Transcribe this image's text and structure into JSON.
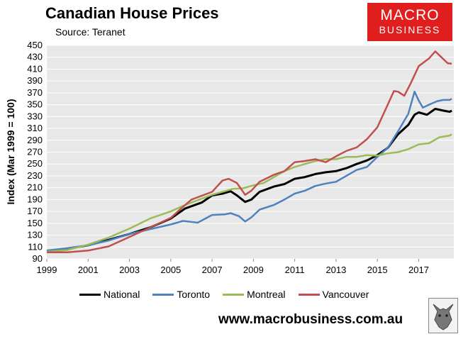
{
  "header": {
    "title": "Canadian House Prices",
    "subtitle": "Source: Teranet"
  },
  "logo": {
    "line1": "MACRO",
    "line2": "BUSINESS",
    "color": "#e01e1e"
  },
  "footer": {
    "website": "www.macrobusiness.com.au"
  },
  "icons": {
    "corner": "wolf-logo-icon"
  },
  "chart_data": {
    "type": "line",
    "title": "Canadian House Prices",
    "ylabel": "Index (Mar 1999 = 100)",
    "xlabel": "",
    "xlim": [
      1999,
      2018.7
    ],
    "ylim": [
      90,
      450
    ],
    "yticks": [
      90,
      110,
      130,
      150,
      170,
      190,
      210,
      230,
      250,
      270,
      290,
      310,
      330,
      350,
      370,
      390,
      410,
      430,
      450
    ],
    "xticks": [
      1999,
      2001,
      2003,
      2005,
      2007,
      2009,
      2011,
      2013,
      2015,
      2017
    ],
    "grid": true,
    "legend_position": "bottom",
    "series": [
      {
        "name": "National",
        "color": "#000000",
        "width": 3,
        "points": [
          [
            1999,
            103
          ],
          [
            2000,
            107
          ],
          [
            2001,
            113
          ],
          [
            2002,
            122
          ],
          [
            2003,
            132
          ],
          [
            2004,
            143
          ],
          [
            2005,
            158
          ],
          [
            2005.7,
            175
          ],
          [
            2006.5,
            185
          ],
          [
            2007,
            197
          ],
          [
            2007.5,
            200
          ],
          [
            2007.9,
            204
          ],
          [
            2008.2,
            197
          ],
          [
            2008.6,
            186
          ],
          [
            2008.9,
            190
          ],
          [
            2009.3,
            203
          ],
          [
            2010,
            212
          ],
          [
            2010.5,
            216
          ],
          [
            2011,
            225
          ],
          [
            2011.5,
            228
          ],
          [
            2012,
            233
          ],
          [
            2012.5,
            236
          ],
          [
            2013,
            238
          ],
          [
            2013.5,
            243
          ],
          [
            2014,
            250
          ],
          [
            2014.5,
            256
          ],
          [
            2015,
            265
          ],
          [
            2015.5,
            277
          ],
          [
            2016,
            300
          ],
          [
            2016.5,
            316
          ],
          [
            2016.8,
            333
          ],
          [
            2017,
            337
          ],
          [
            2017.4,
            333
          ],
          [
            2017.8,
            343
          ],
          [
            2018.2,
            340
          ],
          [
            2018.5,
            338
          ],
          [
            2018.6,
            340
          ]
        ]
      },
      {
        "name": "Toronto",
        "color": "#4f81bd",
        "width": 2.5,
        "points": [
          [
            1999,
            104
          ],
          [
            2000,
            108
          ],
          [
            2001,
            113
          ],
          [
            2002,
            121
          ],
          [
            2003,
            132
          ],
          [
            2004,
            140
          ],
          [
            2005,
            148
          ],
          [
            2005.6,
            154
          ],
          [
            2006.3,
            151
          ],
          [
            2007,
            164
          ],
          [
            2007.6,
            165
          ],
          [
            2007.9,
            167
          ],
          [
            2008.3,
            162
          ],
          [
            2008.6,
            153
          ],
          [
            2008.9,
            160
          ],
          [
            2009.3,
            173
          ],
          [
            2010,
            181
          ],
          [
            2010.5,
            190
          ],
          [
            2011,
            200
          ],
          [
            2011.5,
            205
          ],
          [
            2012,
            213
          ],
          [
            2012.5,
            217
          ],
          [
            2013,
            220
          ],
          [
            2013.5,
            230
          ],
          [
            2014,
            240
          ],
          [
            2014.5,
            245
          ],
          [
            2015,
            262
          ],
          [
            2015.5,
            277
          ],
          [
            2016,
            305
          ],
          [
            2016.5,
            335
          ],
          [
            2016.8,
            372
          ],
          [
            2017,
            357
          ],
          [
            2017.2,
            345
          ],
          [
            2017.5,
            350
          ],
          [
            2017.9,
            356
          ],
          [
            2018.2,
            358
          ],
          [
            2018.5,
            358
          ],
          [
            2018.6,
            360
          ]
        ]
      },
      {
        "name": "Montreal",
        "color": "#9bbb59",
        "width": 2.5,
        "points": [
          [
            1999,
            102
          ],
          [
            2000,
            105
          ],
          [
            2001,
            114
          ],
          [
            2002,
            126
          ],
          [
            2003,
            141
          ],
          [
            2004,
            158
          ],
          [
            2005,
            170
          ],
          [
            2005.5,
            178
          ],
          [
            2006,
            185
          ],
          [
            2007,
            198
          ],
          [
            2007.5,
            203
          ],
          [
            2008,
            208
          ],
          [
            2008.5,
            209
          ],
          [
            2009,
            214
          ],
          [
            2009.5,
            218
          ],
          [
            2010,
            228
          ],
          [
            2010.5,
            238
          ],
          [
            2011,
            245
          ],
          [
            2011.5,
            250
          ],
          [
            2012,
            255
          ],
          [
            2012.5,
            258
          ],
          [
            2013,
            258
          ],
          [
            2013.5,
            262
          ],
          [
            2014,
            262
          ],
          [
            2014.5,
            265
          ],
          [
            2015,
            264
          ],
          [
            2015.5,
            268
          ],
          [
            2016,
            270
          ],
          [
            2016.5,
            275
          ],
          [
            2017,
            283
          ],
          [
            2017.5,
            285
          ],
          [
            2018,
            295
          ],
          [
            2018.5,
            298
          ],
          [
            2018.6,
            300
          ]
        ]
      },
      {
        "name": "Vancouver",
        "color": "#c0504d",
        "width": 2.5,
        "points": [
          [
            1999,
            101
          ],
          [
            2000,
            101
          ],
          [
            2001,
            104
          ],
          [
            2002,
            111
          ],
          [
            2003,
            127
          ],
          [
            2004,
            143
          ],
          [
            2005,
            159
          ],
          [
            2005.5,
            175
          ],
          [
            2006,
            190
          ],
          [
            2007,
            203
          ],
          [
            2007.5,
            222
          ],
          [
            2007.8,
            225
          ],
          [
            2008.2,
            218
          ],
          [
            2008.6,
            198
          ],
          [
            2008.9,
            205
          ],
          [
            2009.3,
            220
          ],
          [
            2010,
            232
          ],
          [
            2010.5,
            238
          ],
          [
            2011,
            253
          ],
          [
            2011.5,
            255
          ],
          [
            2012,
            258
          ],
          [
            2012.5,
            253
          ],
          [
            2013,
            263
          ],
          [
            2013.5,
            272
          ],
          [
            2014,
            278
          ],
          [
            2014.5,
            292
          ],
          [
            2015,
            312
          ],
          [
            2015.5,
            350
          ],
          [
            2015.8,
            373
          ],
          [
            2016,
            372
          ],
          [
            2016.3,
            365
          ],
          [
            2016.6,
            385
          ],
          [
            2017,
            415
          ],
          [
            2017.5,
            428
          ],
          [
            2017.8,
            440
          ],
          [
            2018.1,
            430
          ],
          [
            2018.4,
            420
          ],
          [
            2018.6,
            419
          ]
        ]
      }
    ]
  }
}
